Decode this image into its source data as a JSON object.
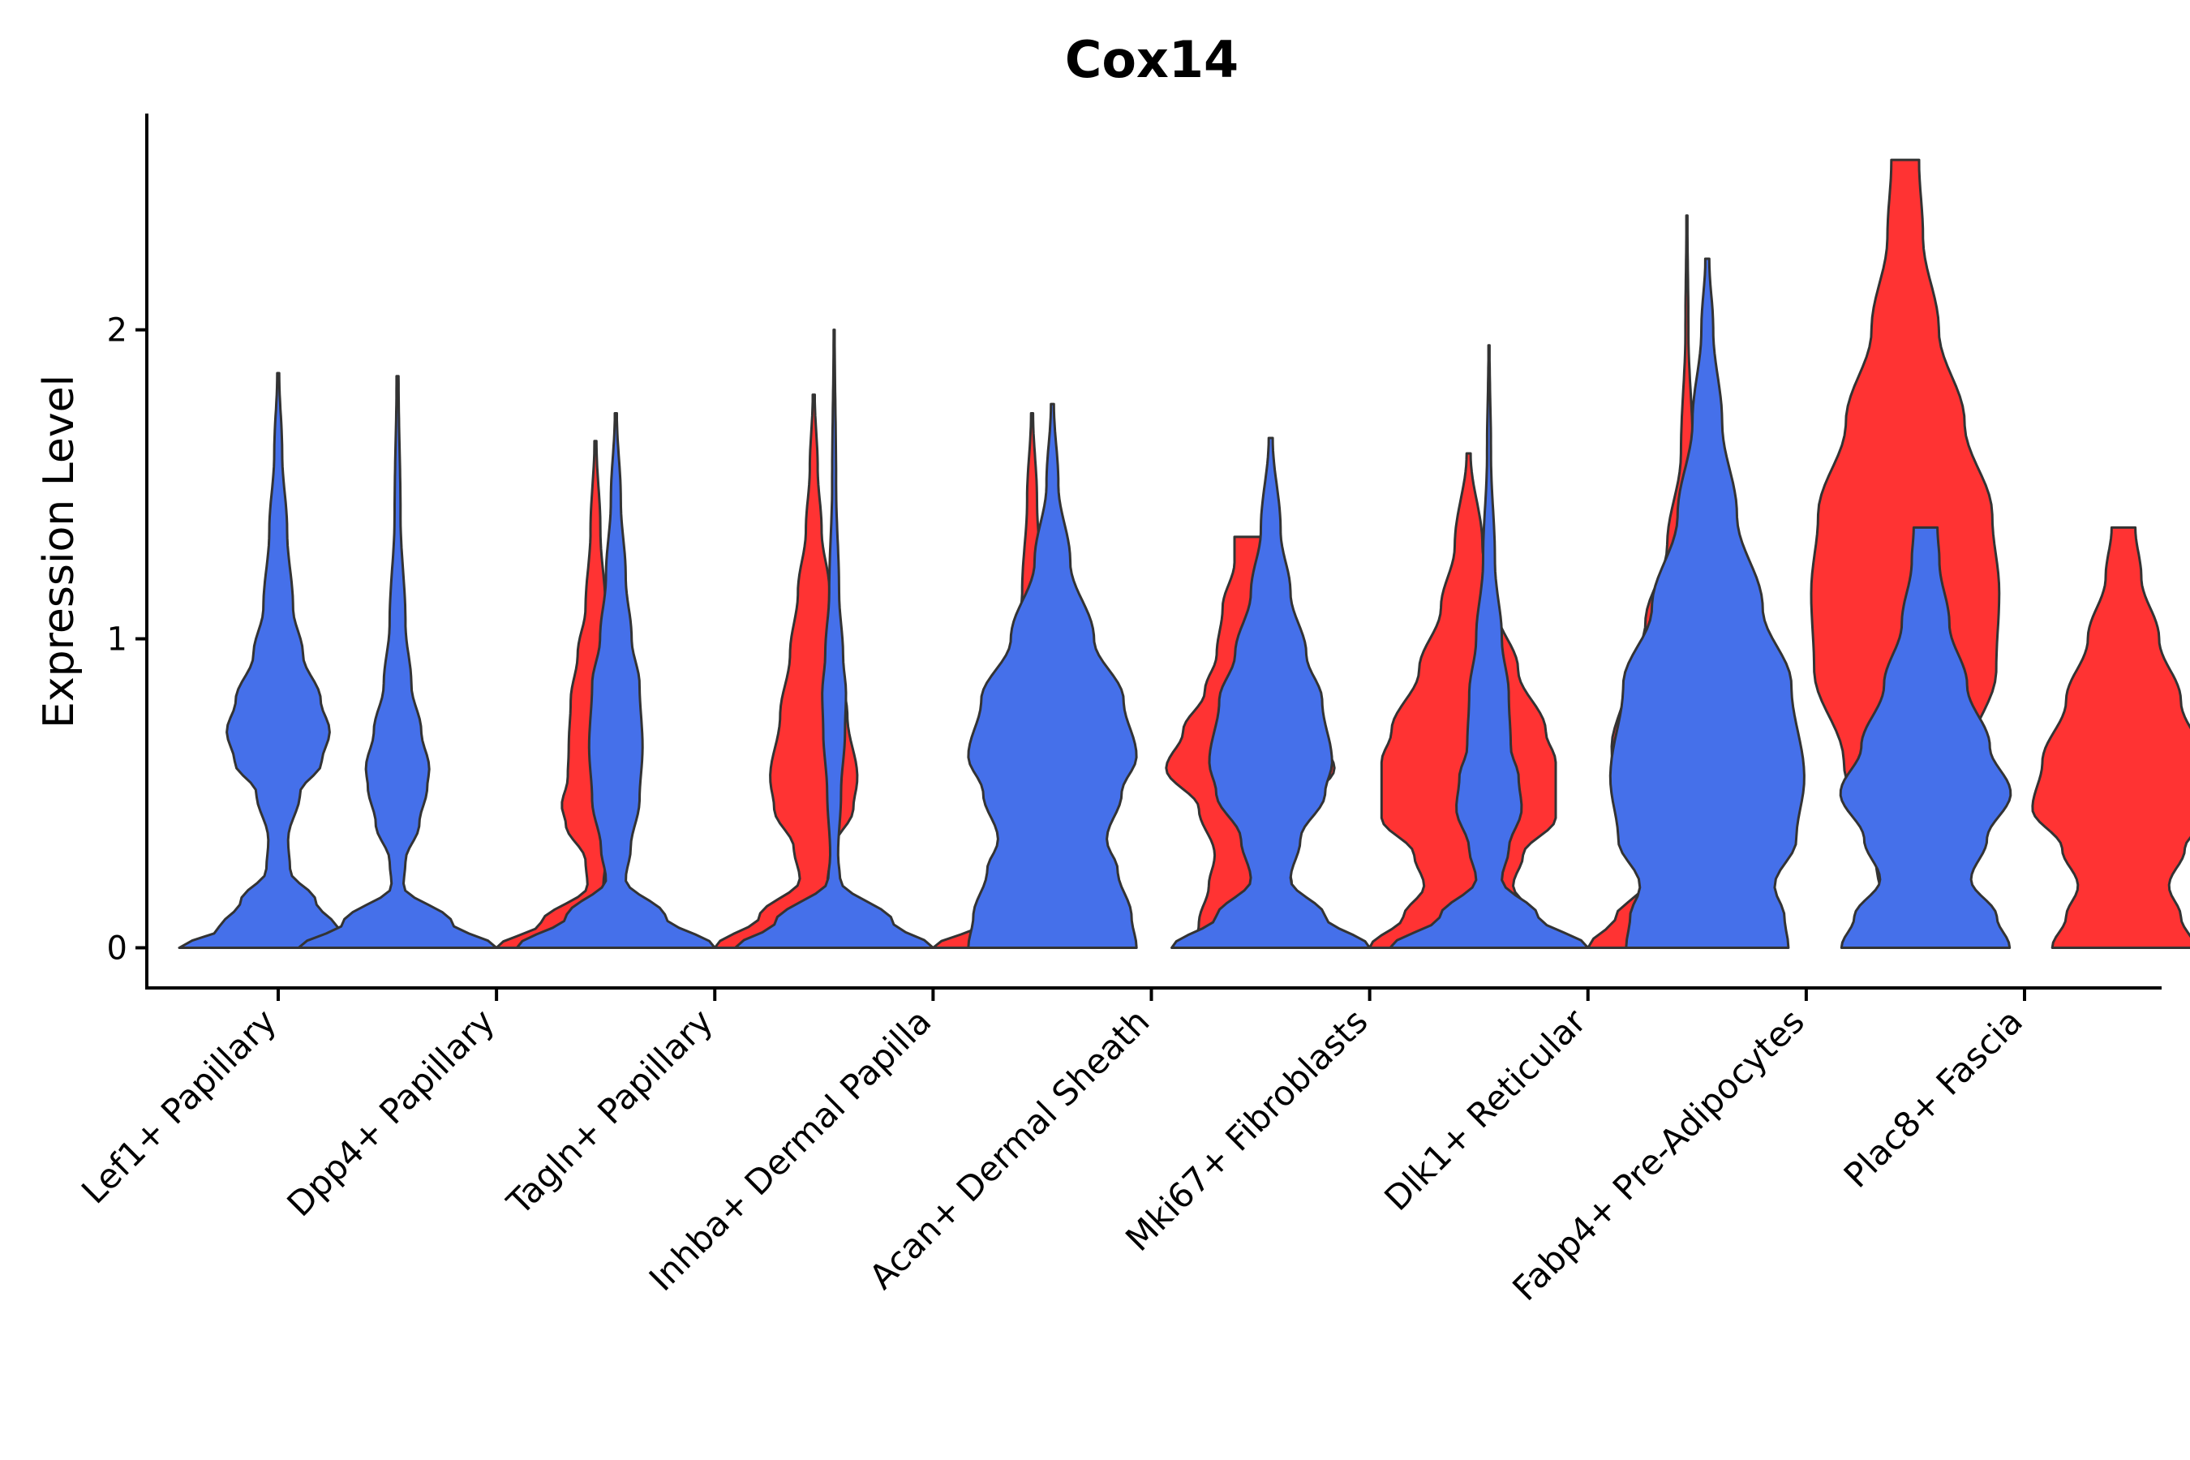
{
  "chart_data": {
    "type": "violin",
    "title": "Cox14",
    "xlabel": "",
    "ylabel": "Expression Level",
    "ylim": [
      -0.13,
      2.7
    ],
    "yticks": [
      0,
      1,
      2
    ],
    "grid": false,
    "legend": "none",
    "colors": {
      "group_a": "#4570EA",
      "group_b": "#FF3333",
      "outline": "#333333"
    },
    "categories": [
      "Lef1+ Papillary",
      "Dpp4+ Papillary",
      "Tagln+ Papillary",
      "Inhba+ Dermal Papilla",
      "Acan+ Dermal Sheath",
      "Mki67+ Fibroblasts",
      "Dlk1+ Reticular",
      "Fabp4+ Pre-Adipocytes",
      "Plac8+ Fascia"
    ],
    "violins": [
      {
        "category": "Lef1+ Papillary",
        "group": "a",
        "offset": 0,
        "max": 1.86,
        "profile": [
          [
            0,
            1
          ],
          [
            0.06,
            0.6
          ],
          [
            0.15,
            0.38
          ],
          [
            0.25,
            0.12
          ],
          [
            0.35,
            0.1
          ],
          [
            0.5,
            0.22
          ],
          [
            0.6,
            0.44
          ],
          [
            0.7,
            0.52
          ],
          [
            0.8,
            0.43
          ],
          [
            0.95,
            0.25
          ],
          [
            1.1,
            0.15
          ],
          [
            1.35,
            0.09
          ],
          [
            1.6,
            0.04
          ],
          [
            1.86,
            0.01
          ]
        ]
      },
      {
        "category": "Dpp4+ Papillary",
        "group": "a",
        "offset": -0.5,
        "max": 1.85,
        "profile": [
          [
            0,
            1
          ],
          [
            0.08,
            0.55
          ],
          [
            0.2,
            0.06
          ],
          [
            0.28,
            0.08
          ],
          [
            0.4,
            0.22
          ],
          [
            0.52,
            0.3
          ],
          [
            0.58,
            0.32
          ],
          [
            0.7,
            0.24
          ],
          [
            0.85,
            0.14
          ],
          [
            1.05,
            0.08
          ],
          [
            1.4,
            0.03
          ],
          [
            1.85,
            0.01
          ]
        ]
      },
      {
        "category": "Dpp4+ Papillary",
        "group": "b",
        "offset": 0.5,
        "max": 1.64,
        "profile": [
          [
            0,
            1
          ],
          [
            0.08,
            0.55
          ],
          [
            0.2,
            0.08
          ],
          [
            0.28,
            0.1
          ],
          [
            0.4,
            0.3
          ],
          [
            0.46,
            0.34
          ],
          [
            0.55,
            0.28
          ],
          [
            0.65,
            0.27
          ],
          [
            0.8,
            0.25
          ],
          [
            0.95,
            0.18
          ],
          [
            1.1,
            0.1
          ],
          [
            1.35,
            0.05
          ],
          [
            1.64,
            0.01
          ]
        ]
      },
      {
        "category": "Tagln+ Papillary",
        "group": "a",
        "offset": -0.5,
        "max": 1.73,
        "profile": [
          [
            0,
            1
          ],
          [
            0.1,
            0.5
          ],
          [
            0.22,
            0.1
          ],
          [
            0.32,
            0.15
          ],
          [
            0.48,
            0.24
          ],
          [
            0.65,
            0.27
          ],
          [
            0.85,
            0.24
          ],
          [
            1.0,
            0.16
          ],
          [
            1.2,
            0.1
          ],
          [
            1.45,
            0.05
          ],
          [
            1.73,
            0.01
          ]
        ]
      },
      {
        "category": "Tagln+ Papillary",
        "group": "b",
        "offset": 0.5,
        "max": 1.79,
        "profile": [
          [
            0,
            1
          ],
          [
            0.1,
            0.55
          ],
          [
            0.22,
            0.14
          ],
          [
            0.32,
            0.2
          ],
          [
            0.45,
            0.4
          ],
          [
            0.55,
            0.44
          ],
          [
            0.75,
            0.34
          ],
          [
            0.95,
            0.24
          ],
          [
            1.15,
            0.16
          ],
          [
            1.35,
            0.08
          ],
          [
            1.55,
            0.04
          ],
          [
            1.79,
            0.01
          ]
        ]
      },
      {
        "category": "Inhba+ Dermal Papilla",
        "group": "a",
        "offset": -0.5,
        "max": 2.0,
        "profile": [
          [
            0,
            1
          ],
          [
            0.08,
            0.6
          ],
          [
            0.22,
            0.06
          ],
          [
            0.3,
            0.04
          ],
          [
            0.5,
            0.07
          ],
          [
            0.7,
            0.11
          ],
          [
            0.82,
            0.12
          ],
          [
            0.95,
            0.09
          ],
          [
            1.15,
            0.05
          ],
          [
            1.5,
            0.02
          ],
          [
            2.0,
            0.005
          ]
        ]
      },
      {
        "category": "Inhba+ Dermal Papilla",
        "group": "b",
        "offset": 0.5,
        "max": 1.73,
        "profile": [
          [
            0,
            1
          ],
          [
            0.08,
            0.5
          ],
          [
            0.2,
            0.12
          ],
          [
            0.3,
            0.1
          ],
          [
            0.45,
            0.13
          ],
          [
            0.55,
            0.13
          ],
          [
            0.68,
            0.2
          ],
          [
            0.8,
            0.26
          ],
          [
            0.95,
            0.19
          ],
          [
            1.15,
            0.1
          ],
          [
            1.45,
            0.05
          ],
          [
            1.73,
            0.01
          ]
        ]
      },
      {
        "category": "Acan+ Dermal Sheath",
        "group": "a",
        "offset": -0.5,
        "max": 1.76,
        "profile": [
          [
            0,
            0.85
          ],
          [
            0.1,
            0.8
          ],
          [
            0.25,
            0.66
          ],
          [
            0.35,
            0.55
          ],
          [
            0.5,
            0.7
          ],
          [
            0.62,
            0.85
          ],
          [
            0.8,
            0.72
          ],
          [
            1.0,
            0.42
          ],
          [
            1.25,
            0.18
          ],
          [
            1.5,
            0.06
          ],
          [
            1.76,
            0.015
          ]
        ]
      },
      {
        "category": "Acan+ Dermal Sheath",
        "group": "b",
        "offset": 0.5,
        "max": 1.33,
        "profile": [
          [
            0,
            0.55
          ],
          [
            0.08,
            0.52
          ],
          [
            0.2,
            0.42
          ],
          [
            0.3,
            0.36
          ],
          [
            0.45,
            0.52
          ],
          [
            0.58,
            0.85
          ],
          [
            0.7,
            0.68
          ],
          [
            0.83,
            0.46
          ],
          [
            0.95,
            0.34
          ],
          [
            1.1,
            0.28
          ],
          [
            1.25,
            0.16
          ],
          [
            1.33,
            0.16
          ]
        ]
      },
      {
        "category": "Mki67+ Fibroblasts",
        "group": "a",
        "offset": -0.5,
        "max": 1.65,
        "profile": [
          [
            0,
            1
          ],
          [
            0.1,
            0.55
          ],
          [
            0.22,
            0.2
          ],
          [
            0.35,
            0.3
          ],
          [
            0.5,
            0.55
          ],
          [
            0.6,
            0.62
          ],
          [
            0.8,
            0.52
          ],
          [
            0.95,
            0.36
          ],
          [
            1.15,
            0.2
          ],
          [
            1.35,
            0.1
          ],
          [
            1.65,
            0.02
          ]
        ]
      },
      {
        "category": "Mki67+ Fibroblasts",
        "group": "b",
        "offset": 0.5,
        "max": 1.6,
        "profile": [
          [
            0,
            1
          ],
          [
            0.1,
            0.66
          ],
          [
            0.2,
            0.45
          ],
          [
            0.3,
            0.55
          ],
          [
            0.42,
            0.88
          ],
          [
            0.6,
            0.88
          ],
          [
            0.7,
            0.78
          ],
          [
            0.9,
            0.5
          ],
          [
            1.1,
            0.28
          ],
          [
            1.3,
            0.14
          ],
          [
            1.6,
            0.02
          ]
        ]
      },
      {
        "category": "Dlk1+ Reticular",
        "group": "a",
        "offset": -0.5,
        "max": 1.95,
        "profile": [
          [
            0,
            1
          ],
          [
            0.1,
            0.5
          ],
          [
            0.22,
            0.13
          ],
          [
            0.32,
            0.2
          ],
          [
            0.45,
            0.33
          ],
          [
            0.55,
            0.3
          ],
          [
            0.65,
            0.22
          ],
          [
            0.82,
            0.2
          ],
          [
            1.0,
            0.13
          ],
          [
            1.25,
            0.06
          ],
          [
            1.6,
            0.02
          ],
          [
            1.95,
            0.005
          ]
        ]
      },
      {
        "category": "Dlk1+ Reticular",
        "group": "b",
        "offset": 0.5,
        "max": 2.37,
        "profile": [
          [
            0,
            1
          ],
          [
            0.1,
            0.72
          ],
          [
            0.2,
            0.45
          ],
          [
            0.3,
            0.5
          ],
          [
            0.45,
            0.72
          ],
          [
            0.65,
            0.76
          ],
          [
            0.85,
            0.62
          ],
          [
            1.05,
            0.42
          ],
          [
            1.3,
            0.2
          ],
          [
            1.6,
            0.06
          ],
          [
            2.0,
            0.015
          ],
          [
            2.37,
            0.005
          ]
        ]
      },
      {
        "category": "Fabp4+ Pre-Adipocytes",
        "group": "a",
        "offset": -0.5,
        "max": 2.23,
        "profile": [
          [
            0,
            0.82
          ],
          [
            0.1,
            0.78
          ],
          [
            0.2,
            0.68
          ],
          [
            0.35,
            0.9
          ],
          [
            0.55,
            0.98
          ],
          [
            0.85,
            0.85
          ],
          [
            1.1,
            0.56
          ],
          [
            1.4,
            0.3
          ],
          [
            1.7,
            0.15
          ],
          [
            2.0,
            0.06
          ],
          [
            2.23,
            0.02
          ]
        ]
      },
      {
        "category": "Fabp4+ Pre-Adipocytes",
        "group": "b",
        "offset": 0.5,
        "max": 2.55,
        "profile": [
          [
            0,
            0.12
          ],
          [
            0.3,
            0.3
          ],
          [
            0.6,
            0.62
          ],
          [
            0.9,
            0.92
          ],
          [
            1.15,
            0.95
          ],
          [
            1.4,
            0.88
          ],
          [
            1.7,
            0.6
          ],
          [
            2.0,
            0.34
          ],
          [
            2.3,
            0.18
          ],
          [
            2.55,
            0.14
          ]
        ]
      },
      {
        "category": "Plac8+ Fascia",
        "group": "a",
        "offset": -0.5,
        "max": 1.36,
        "profile": [
          [
            0,
            0.85
          ],
          [
            0.1,
            0.72
          ],
          [
            0.22,
            0.46
          ],
          [
            0.35,
            0.62
          ],
          [
            0.5,
            0.86
          ],
          [
            0.65,
            0.65
          ],
          [
            0.85,
            0.42
          ],
          [
            1.05,
            0.24
          ],
          [
            1.25,
            0.14
          ],
          [
            1.36,
            0.12
          ]
        ]
      },
      {
        "category": "Plac8+ Fascia",
        "group": "b",
        "offset": 0.5,
        "max": 1.36,
        "profile": [
          [
            0,
            0.72
          ],
          [
            0.1,
            0.58
          ],
          [
            0.2,
            0.46
          ],
          [
            0.32,
            0.62
          ],
          [
            0.45,
            0.92
          ],
          [
            0.6,
            0.82
          ],
          [
            0.8,
            0.58
          ],
          [
            1.0,
            0.36
          ],
          [
            1.2,
            0.18
          ],
          [
            1.36,
            0.12
          ]
        ]
      }
    ]
  }
}
